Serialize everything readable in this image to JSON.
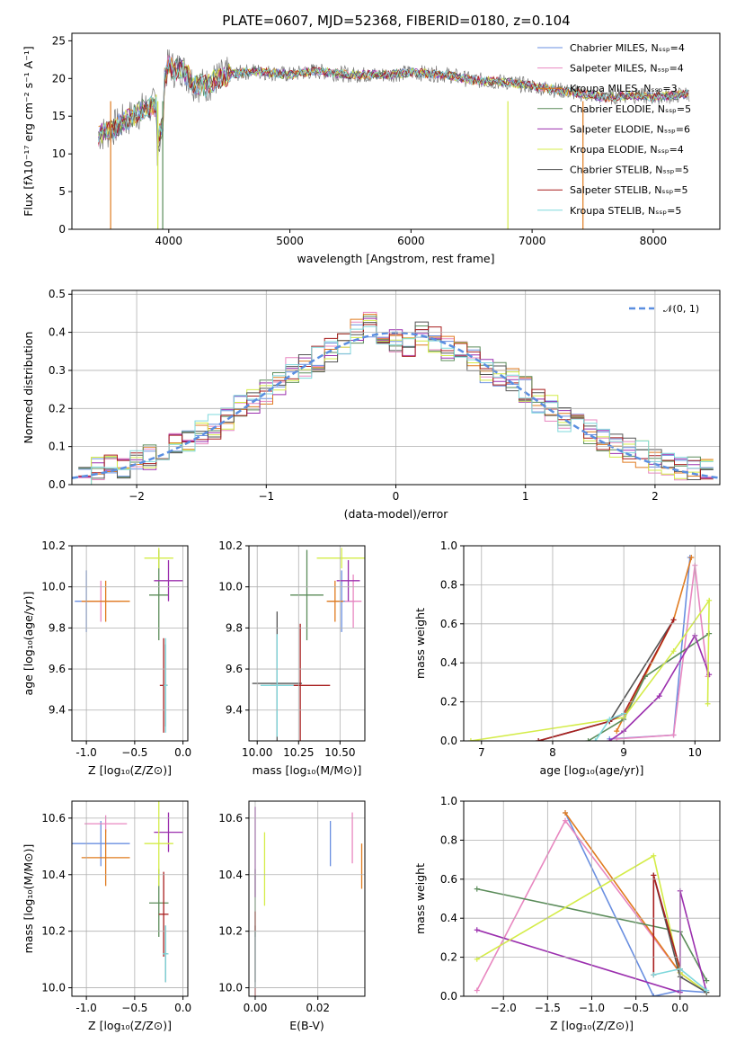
{
  "figure": {
    "title": "PLATE=0607, MJD=52368, FIBERID=0180, z=0.104"
  },
  "chart_data": [
    {
      "id": "spectrum",
      "type": "line",
      "xlabel": "wavelength [Angstrom, rest frame]",
      "ylabel": "Flux [fλ10⁻¹⁷ erg cm⁻² s⁻¹ A⁻¹]",
      "xlim": [
        3200,
        8550
      ],
      "ylim": [
        0,
        26
      ],
      "xticks": [
        4000,
        5000,
        6000,
        7000,
        8000
      ],
      "yticks": [
        0,
        5,
        10,
        15,
        20,
        25
      ],
      "grid": false,
      "legend_position": "top-right",
      "legend": [
        {
          "label": "Chabrier MILES, N_SSP=4",
          "color": "#6a8fe0"
        },
        {
          "label": "Salpeter MILES, N_SSP=4",
          "color": "#e887c0"
        },
        {
          "label": "Kroupa MILES, N_SSP=3",
          "color": "#e07b1f"
        },
        {
          "label": "Chabrier ELODIE, N_SSP=5",
          "color": "#5b8c5a"
        },
        {
          "label": "Salpeter ELODIE, N_SSP=6",
          "color": "#9b2fae"
        },
        {
          "label": "Kroupa ELODIE, N_SSP=4",
          "color": "#d4ec48"
        },
        {
          "label": "Chabrier STELIB, N_SSP=5",
          "color": "#555555"
        },
        {
          "label": "Salpeter STELIB, N_SSP=5",
          "color": "#a81e1e"
        },
        {
          "label": "Kroupa STELIB, N_SSP=5",
          "color": "#7fd8dc"
        }
      ],
      "data_envelope": {
        "x": [
          3420,
          3500,
          3600,
          3700,
          3800,
          3900,
          3950,
          4000,
          4050,
          4100,
          4200,
          4300,
          4400,
          4500,
          4700,
          5000,
          5200,
          5500,
          5800,
          6000,
          6300,
          6500,
          6800,
          7000,
          7200,
          7400,
          7600,
          7800,
          8000,
          8200,
          8300
        ],
        "y": [
          12.5,
          13,
          14,
          15,
          16,
          16.5,
          19,
          22,
          21,
          21.5,
          19.5,
          19,
          20,
          20.5,
          21,
          20.5,
          21,
          20.5,
          20.5,
          20.8,
          20.5,
          19.8,
          19.5,
          19,
          18.5,
          18,
          17.5,
          17.8,
          17.5,
          17.8,
          18
        ]
      }
    },
    {
      "id": "residuals",
      "type": "bar",
      "xlabel": "(data-model)/error",
      "ylabel": "Normed distribution",
      "xlim": [
        -2.5,
        2.5
      ],
      "ylim": [
        0,
        0.51
      ],
      "xticks": [
        -2,
        -1,
        0,
        1,
        2
      ],
      "yticks": [
        0.0,
        0.1,
        0.2,
        0.3,
        0.4,
        0.5
      ],
      "grid": true,
      "legend_position": "top-right",
      "legend": [
        {
          "label": "𝒩(0, 1)",
          "color": "#5a8ee0"
        }
      ],
      "bins_approx": {
        "centers": [
          -2.4,
          -2.3,
          -2.2,
          -2.1,
          -2.0,
          -1.9,
          -1.8,
          -1.7,
          -1.6,
          -1.5,
          -1.4,
          -1.3,
          -1.2,
          -1.1,
          -1.0,
          -0.9,
          -0.8,
          -0.7,
          -0.6,
          -0.5,
          -0.4,
          -0.3,
          -0.2,
          -0.1,
          0.0,
          0.1,
          0.2,
          0.3,
          0.4,
          0.5,
          0.6,
          0.7,
          0.8,
          0.9,
          1.0,
          1.1,
          1.2,
          1.3,
          1.4,
          1.5,
          1.6,
          1.7,
          1.8,
          1.9,
          2.0,
          2.1,
          2.2,
          2.3,
          2.4
        ],
        "values": [
          0.03,
          0.04,
          0.045,
          0.05,
          0.06,
          0.07,
          0.09,
          0.1,
          0.12,
          0.14,
          0.15,
          0.17,
          0.2,
          0.22,
          0.24,
          0.26,
          0.3,
          0.31,
          0.33,
          0.35,
          0.37,
          0.4,
          0.42,
          0.4,
          0.38,
          0.36,
          0.4,
          0.38,
          0.36,
          0.35,
          0.33,
          0.3,
          0.29,
          0.27,
          0.25,
          0.22,
          0.2,
          0.17,
          0.16,
          0.14,
          0.12,
          0.1,
          0.09,
          0.08,
          0.06,
          0.05,
          0.045,
          0.04,
          0.035
        ]
      }
    },
    {
      "id": "age_vs_Z",
      "type": "scatter",
      "xlabel": "Z [log₁₀(Z/Z⊙)]",
      "ylabel": "age  [log₁₀(age/yr)]",
      "xlim": [
        -1.15,
        0.05
      ],
      "ylim": [
        9.25,
        10.2
      ],
      "xticks": [
        -1.0,
        -0.5,
        0.0
      ],
      "yticks": [
        9.4,
        9.6,
        9.8,
        10.0,
        10.2
      ],
      "grid": true,
      "points": [
        {
          "x": -1.0,
          "y": 9.93,
          "xerr": 0.12,
          "yerr": 0.15,
          "color": "#6a8fe0"
        },
        {
          "x": -0.85,
          "y": 9.93,
          "xerr": 0.2,
          "yerr": 0.1,
          "color": "#e887c0"
        },
        {
          "x": -0.8,
          "y": 9.93,
          "xerr": 0.25,
          "yerr": 0.1,
          "color": "#e07b1f"
        },
        {
          "x": -0.25,
          "y": 9.96,
          "xerr": 0.1,
          "yerr": 0.22,
          "color": "#5b8c5a"
        },
        {
          "x": -0.15,
          "y": 10.03,
          "xerr": 0.15,
          "yerr": 0.1,
          "color": "#9b2fae"
        },
        {
          "x": -0.25,
          "y": 10.14,
          "xerr": 0.15,
          "yerr": 0.05,
          "color": "#d4ec48"
        },
        {
          "x": -0.18,
          "y": 9.52,
          "xerr": 0.02,
          "yerr": 0.2,
          "color": "#555555"
        },
        {
          "x": -0.2,
          "y": 9.52,
          "xerr": 0.04,
          "yerr": 0.23,
          "color": "#a81e1e"
        },
        {
          "x": -0.18,
          "y": 9.52,
          "xerr": 0.02,
          "yerr": 0.23,
          "color": "#7fd8dc"
        }
      ]
    },
    {
      "id": "age_vs_mass",
      "type": "scatter",
      "xlabel": "mass [log₁₀(M/M⊙)]",
      "ylabel": "",
      "xlim": [
        9.95,
        10.65
      ],
      "ylim": [
        9.25,
        10.2
      ],
      "xticks": [
        10.0,
        10.25,
        10.5
      ],
      "yticks": [
        9.4,
        9.6,
        9.8,
        10.0,
        10.2
      ],
      "grid": true,
      "points": [
        {
          "x": 10.51,
          "y": 9.93,
          "xerr": 0.08,
          "yerr": 0.15,
          "color": "#6a8fe0"
        },
        {
          "x": 10.58,
          "y": 9.93,
          "xerr": 0.05,
          "yerr": 0.13,
          "color": "#e887c0"
        },
        {
          "x": 10.47,
          "y": 9.93,
          "xerr": 0.05,
          "yerr": 0.1,
          "color": "#e07b1f"
        },
        {
          "x": 10.3,
          "y": 9.96,
          "xerr": 0.1,
          "yerr": 0.22,
          "color": "#5b8c5a"
        },
        {
          "x": 10.55,
          "y": 10.03,
          "xerr": 0.07,
          "yerr": 0.1,
          "color": "#9b2fae"
        },
        {
          "x": 10.51,
          "y": 10.14,
          "xerr": 0.15,
          "yerr": 0.05,
          "color": "#d4ec48"
        },
        {
          "x": 10.12,
          "y": 9.53,
          "xerr": 0.15,
          "yerr": 0.35,
          "color": "#555555"
        },
        {
          "x": 10.26,
          "y": 9.52,
          "xerr": 0.18,
          "yerr": 0.3,
          "color": "#a81e1e"
        },
        {
          "x": 10.12,
          "y": 9.52,
          "xerr": 0.1,
          "yerr": 0.25,
          "color": "#7fd8dc"
        }
      ]
    },
    {
      "id": "weight_vs_age",
      "type": "line",
      "xlabel": "age  [log₁₀(age/yr)]",
      "ylabel": "mass weight",
      "xlim": [
        6.75,
        10.35
      ],
      "ylim": [
        0,
        1.0
      ],
      "xticks": [
        7,
        8,
        9,
        10
      ],
      "yticks": [
        0.0,
        0.2,
        0.4,
        0.6,
        0.8,
        1.0
      ],
      "grid": true,
      "series": [
        {
          "color": "#6a8fe0",
          "x": [
            8.8,
            9.7,
            9.93
          ],
          "y": [
            0.01,
            0.03,
            0.94
          ]
        },
        {
          "color": "#e887c0",
          "x": [
            8.9,
            9.7,
            10.0,
            10.18
          ],
          "y": [
            0.01,
            0.03,
            0.9,
            0.33
          ]
        },
        {
          "color": "#e07b1f",
          "x": [
            8.9,
            9.7,
            9.95
          ],
          "y": [
            0.05,
            0.62,
            0.94
          ]
        },
        {
          "color": "#5b8c5a",
          "x": [
            8.5,
            9.0,
            9.3,
            10.2
          ],
          "y": [
            0.0,
            0.11,
            0.33,
            0.55
          ]
        },
        {
          "color": "#9b2fae",
          "x": [
            8.8,
            9.0,
            9.5,
            10.0,
            10.2
          ],
          "y": [
            0.0,
            0.05,
            0.23,
            0.54,
            0.34
          ]
        },
        {
          "color": "#d4ec48",
          "x": [
            6.85,
            9.0,
            9.7,
            10.2,
            10.18
          ],
          "y": [
            0.0,
            0.12,
            0.46,
            0.72,
            0.19
          ]
        },
        {
          "color": "#555555",
          "x": [
            7.8,
            8.8,
            9.7
          ],
          "y": [
            0.0,
            0.1,
            0.62
          ]
        },
        {
          "color": "#a81e1e",
          "x": [
            7.8,
            8.8,
            9.0,
            9.7
          ],
          "y": [
            0.0,
            0.1,
            0.14,
            0.62
          ]
        },
        {
          "color": "#7fd8dc",
          "x": [
            8.6,
            8.8,
            9.0
          ],
          "y": [
            0.0,
            0.11,
            0.14
          ]
        }
      ]
    },
    {
      "id": "mass_vs_Z",
      "type": "scatter",
      "xlabel": "Z [log₁₀(Z/Z⊙)]",
      "ylabel": "mass [log₁₀(M/M⊙)]",
      "xlim": [
        -1.15,
        0.05
      ],
      "ylim": [
        9.97,
        10.66
      ],
      "xticks": [
        -1.0,
        -0.5,
        0.0
      ],
      "yticks": [
        10.0,
        10.2,
        10.4,
        10.6
      ],
      "grid": true,
      "points": [
        {
          "x": -0.85,
          "y": 10.51,
          "xerr": 0.3,
          "yerr": 0.08,
          "color": "#6a8fe0"
        },
        {
          "x": -0.8,
          "y": 10.58,
          "xerr": 0.22,
          "yerr": 0.03,
          "color": "#e887c0"
        },
        {
          "x": -0.8,
          "y": 10.46,
          "xerr": 0.25,
          "yerr": 0.1,
          "color": "#e07b1f"
        },
        {
          "x": -0.25,
          "y": 10.3,
          "xerr": 0.1,
          "yerr": 0.12,
          "color": "#5b8c5a"
        },
        {
          "x": -0.15,
          "y": 10.55,
          "xerr": 0.15,
          "yerr": 0.07,
          "color": "#9b2fae"
        },
        {
          "x": -0.25,
          "y": 10.51,
          "xerr": 0.15,
          "yerr": 0.15,
          "color": "#d4ec48"
        },
        {
          "x": -0.18,
          "y": 10.12,
          "xerr": 0.02,
          "yerr": 0.1,
          "color": "#555555"
        },
        {
          "x": -0.2,
          "y": 10.26,
          "xerr": 0.05,
          "yerr": 0.15,
          "color": "#a81e1e"
        },
        {
          "x": -0.18,
          "y": 10.12,
          "xerr": 0.03,
          "yerr": 0.1,
          "color": "#7fd8dc"
        }
      ]
    },
    {
      "id": "mass_vs_ebv",
      "type": "scatter",
      "xlabel": "E(B-V)",
      "ylabel": "",
      "xlim": [
        -0.002,
        0.035
      ],
      "ylim": [
        9.97,
        10.66
      ],
      "xticks": [
        0.0,
        0.02
      ],
      "yticks": [
        10.0,
        10.2,
        10.4,
        10.6
      ],
      "grid": true,
      "points": [
        {
          "x": 0.024,
          "y": 10.51,
          "xerr": 0,
          "yerr": 0.08,
          "color": "#6a8fe0"
        },
        {
          "x": 0.031,
          "y": 10.53,
          "xerr": 0,
          "yerr": 0.09,
          "color": "#e887c0"
        },
        {
          "x": 0.034,
          "y": 10.43,
          "xerr": 0,
          "yerr": 0.08,
          "color": "#e07b1f"
        },
        {
          "x": 0.0,
          "y": 10.3,
          "xerr": 0,
          "yerr": 0.12,
          "color": "#5b8c5a"
        },
        {
          "x": 0.0,
          "y": 10.48,
          "xerr": 0,
          "yerr": 0.16,
          "color": "#9b2fae"
        },
        {
          "x": 0.003,
          "y": 10.42,
          "xerr": 0,
          "yerr": 0.13,
          "color": "#d4ec48"
        },
        {
          "x": 0.0,
          "y": 10.12,
          "xerr": 0,
          "yerr": 0.1,
          "color": "#555555"
        },
        {
          "x": 0.0,
          "y": 10.12,
          "xerr": 0,
          "yerr": 0.15,
          "color": "#a81e1e"
        },
        {
          "x": 0.0,
          "y": 10.1,
          "xerr": 0,
          "yerr": 0.1,
          "color": "#7fd8dc"
        }
      ]
    },
    {
      "id": "weight_vs_Z",
      "type": "line",
      "xlabel": "Z [log₁₀(Z/Z⊙)]",
      "ylabel": "mass weight",
      "xlim": [
        -2.45,
        0.45
      ],
      "ylim": [
        0,
        1.0
      ],
      "xticks": [
        -2.0,
        -1.5,
        -1.0,
        -0.5,
        0.0
      ],
      "yticks": [
        0.0,
        0.2,
        0.4,
        0.6,
        0.8,
        1.0
      ],
      "grid": true,
      "series": [
        {
          "color": "#6a8fe0",
          "x": [
            -1.3,
            -0.3,
            0.0,
            0.3
          ],
          "y": [
            0.94,
            0.0,
            0.03,
            0.02
          ]
        },
        {
          "color": "#e887c0",
          "x": [
            -2.3,
            -1.3,
            0.0,
            0.3
          ],
          "y": [
            0.03,
            0.9,
            0.12,
            0.02
          ]
        },
        {
          "color": "#e07b1f",
          "x": [
            -1.3,
            0.0,
            0.3
          ],
          "y": [
            0.94,
            0.12,
            0.02
          ]
        },
        {
          "color": "#5b8c5a",
          "x": [
            -2.3,
            0.0,
            0.3
          ],
          "y": [
            0.55,
            0.33,
            0.08
          ]
        },
        {
          "color": "#9b2fae",
          "x": [
            -2.3,
            0.0,
            0.0,
            0.3
          ],
          "y": [
            0.34,
            0.02,
            0.54,
            0.02
          ]
        },
        {
          "color": "#d4ec48",
          "x": [
            -2.3,
            -0.3,
            0.0,
            0.3
          ],
          "y": [
            0.19,
            0.72,
            0.12,
            0.02
          ]
        },
        {
          "color": "#555555",
          "x": [
            -0.3,
            0.0,
            0.3
          ],
          "y": [
            0.62,
            0.1,
            0.02
          ]
        },
        {
          "color": "#a81e1e",
          "x": [
            -0.3,
            -0.3,
            0.0
          ],
          "y": [
            0.11,
            0.62,
            0.14
          ]
        },
        {
          "color": "#7fd8dc",
          "x": [
            -0.3,
            0.0,
            0.3
          ],
          "y": [
            0.11,
            0.14,
            0.03
          ]
        }
      ]
    }
  ]
}
